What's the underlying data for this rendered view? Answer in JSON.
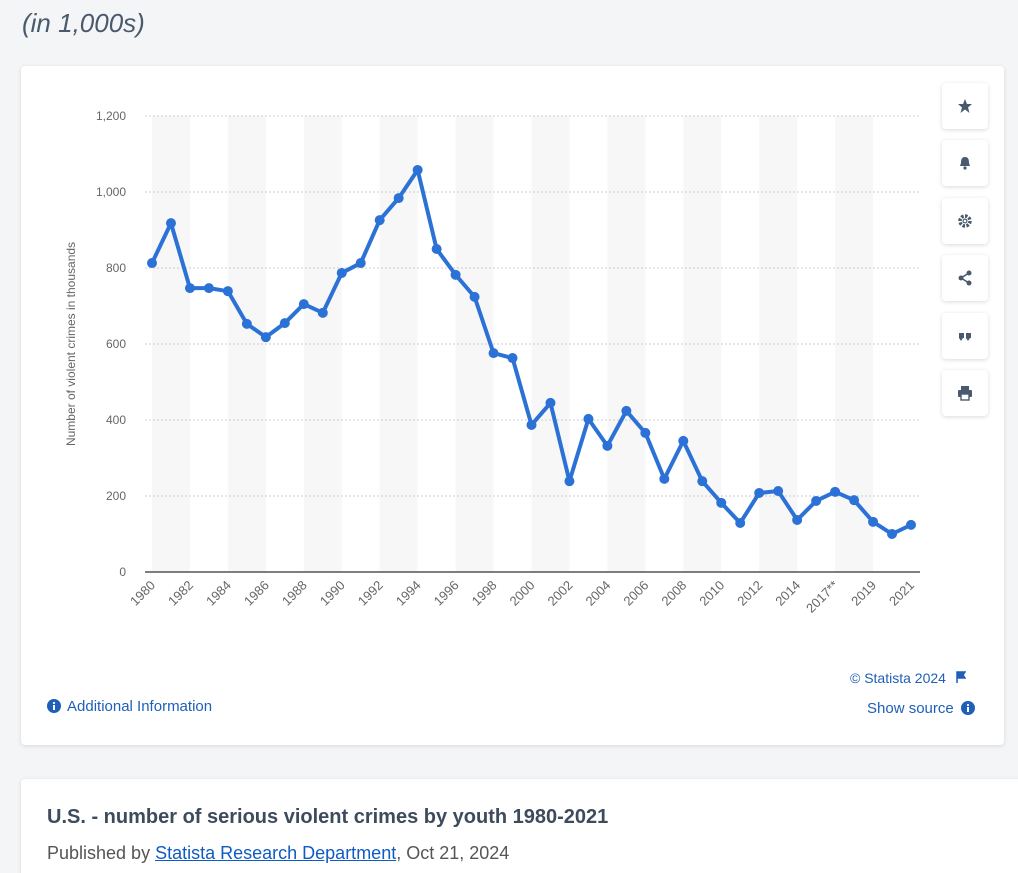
{
  "header": {
    "subtitle": "(in 1,000s)"
  },
  "chart_data": {
    "type": "line",
    "ylabel": "Number of violent crimes in thousands",
    "categories": [
      "1980",
      null,
      "1982",
      null,
      "1984",
      null,
      "1986",
      null,
      "1988",
      null,
      "1990",
      null,
      "1992",
      null,
      "1994",
      null,
      "1996",
      null,
      "1998",
      null,
      "2000",
      null,
      "2002",
      null,
      "2004",
      null,
      "2006",
      null,
      "2008",
      null,
      "2010",
      null,
      "2012",
      null,
      "2014",
      null,
      "2017**",
      null,
      "2019",
      null,
      "2021"
    ],
    "series": [
      {
        "name": "Violent crimes",
        "color": "#2c72d6",
        "values": [
          813,
          918,
          747,
          747,
          739,
          653,
          618,
          655,
          705,
          682,
          787,
          813,
          926,
          984,
          1058,
          850,
          782,
          724,
          576,
          563,
          387,
          445,
          239,
          403,
          332,
          424,
          366,
          245,
          345,
          239,
          182,
          129,
          208,
          213,
          137,
          187,
          211,
          189,
          132,
          100,
          124
        ]
      }
    ],
    "ylim": [
      0,
      1200
    ],
    "yticks": [
      0,
      200,
      400,
      600,
      800,
      {
        "value": 1000,
        "label": "1,000"
      },
      {
        "value": 1200,
        "label": "1,200"
      }
    ],
    "grid": true
  },
  "footer": {
    "copyright": "© Statista 2024",
    "additional_info": "Additional Information",
    "show_source": "Show source"
  },
  "details": {
    "title": "U.S. - number of serious violent crimes by youth 1980-2021",
    "published_by": "Published by",
    "author": "Statista Research Department",
    "date": ", Oct 21, 2024"
  }
}
